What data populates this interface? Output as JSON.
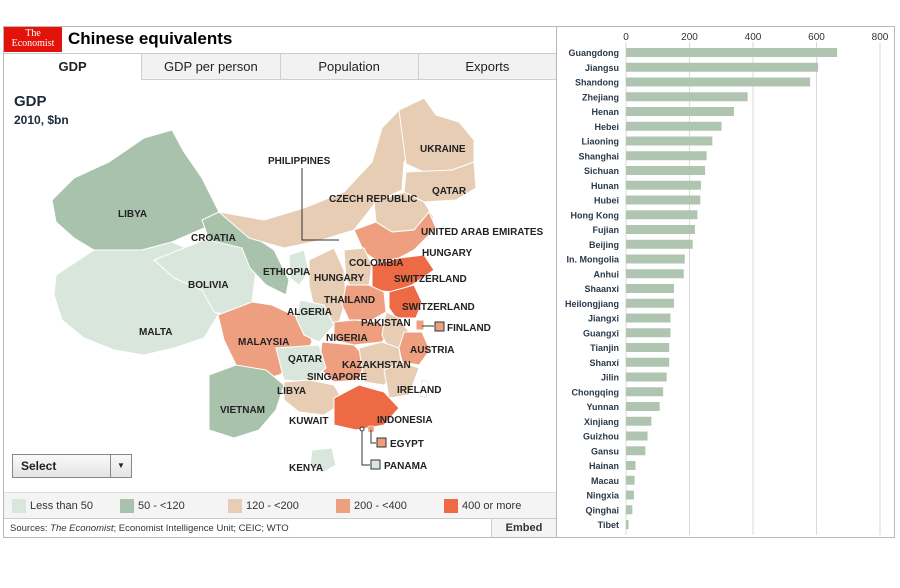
{
  "header": {
    "logo_line1": "The",
    "logo_line2": "Economist",
    "title": "Chinese equivalents"
  },
  "tabs": [
    {
      "label": "GDP",
      "active": true
    },
    {
      "label": "GDP per person",
      "active": false
    },
    {
      "label": "Population",
      "active": false
    },
    {
      "label": "Exports",
      "active": false
    }
  ],
  "map": {
    "title": "GDP",
    "subtitle": "2010, $bn",
    "region_labels": [
      "LIBYA",
      "CROATIA",
      "BOLIVIA",
      "MALTA",
      "ETHIOPIA",
      "PHILIPPINES",
      "UKRAINE",
      "QATAR",
      "CZECH REPUBLIC",
      "UNITED ARAB EMIRATES",
      "HUNGARY",
      "COLOMBIA",
      "HUNGARY",
      "SWITZERLAND",
      "THAILAND",
      "SWITZERLAND",
      "ALGERIA",
      "PAKISTAN",
      "FINLAND",
      "MALAYSIA",
      "NIGERIA",
      "AUSTRIA",
      "QATAR",
      "KAZAKHSTAN",
      "SINGAPORE",
      "LIBYA",
      "IRELAND",
      "VIETNAM",
      "KUWAIT",
      "INDONESIA",
      "EGYPT",
      "KENYA",
      "PANAMA"
    ],
    "colors": {
      "lt50": "#d8e6dc",
      "50_120": "#a9c2ac",
      "120_200": "#e6cdb4",
      "200_400": "#ee9f80",
      "400plus": "#ed6a45"
    }
  },
  "select": {
    "label": "Select"
  },
  "legend": [
    {
      "label": "Less than 50",
      "color": "#d8e6dc"
    },
    {
      "label": "50 - <120",
      "color": "#a9c2ac"
    },
    {
      "label": "120 - <200",
      "color": "#e6cdb4"
    },
    {
      "label": "200 - <400",
      "color": "#ee9f80"
    },
    {
      "label": "400 or more",
      "color": "#ed6a45"
    }
  ],
  "footer": {
    "sources_prefix": "Sources: ",
    "sources_italic": "The Economist",
    "sources_rest": "; Economist Intelligence Unit; CEIC; WTO",
    "embed": "Embed"
  },
  "chart_data": {
    "type": "bar",
    "orientation": "horizontal",
    "title": "",
    "xlim": [
      0,
      850
    ],
    "ticks": [
      0,
      200,
      400,
      600,
      800
    ],
    "grid": true,
    "bar_color": "#afc5b0",
    "categories": [
      "Guangdong",
      "Jiangsu",
      "Shandong",
      "Zhejiang",
      "Henan",
      "Hebei",
      "Liaoning",
      "Shanghai",
      "Sichuan",
      "Hunan",
      "Hubei",
      "Hong Kong",
      "Fujian",
      "Beijing",
      "In. Mongolia",
      "Anhui",
      "Shaanxi",
      "Heilongjiang",
      "Jiangxi",
      "Guangxi",
      "Tianjin",
      "Shanxi",
      "Jilin",
      "Chongqing",
      "Yunnan",
      "Xinjiang",
      "Guizhou",
      "Gansu",
      "Hainan",
      "Macau",
      "Ningxia",
      "Qinghai",
      "Tibet"
    ],
    "values": [
      665,
      605,
      580,
      383,
      340,
      301,
      272,
      254,
      249,
      236,
      234,
      225,
      217,
      210,
      185,
      182,
      151,
      151,
      140,
      140,
      136,
      136,
      128,
      117,
      106,
      80,
      68,
      61,
      30,
      27,
      25,
      20,
      8
    ]
  }
}
